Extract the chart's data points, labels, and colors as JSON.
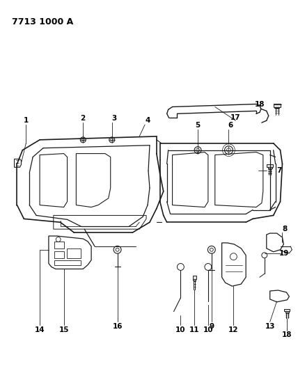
{
  "title": "7713 1000 A",
  "bg_color": "#ffffff",
  "line_color": "#1a1a1a",
  "title_fontsize": 9,
  "label_fontsize": 7.5,
  "figsize": [
    4.28,
    5.33
  ],
  "dpi": 100
}
